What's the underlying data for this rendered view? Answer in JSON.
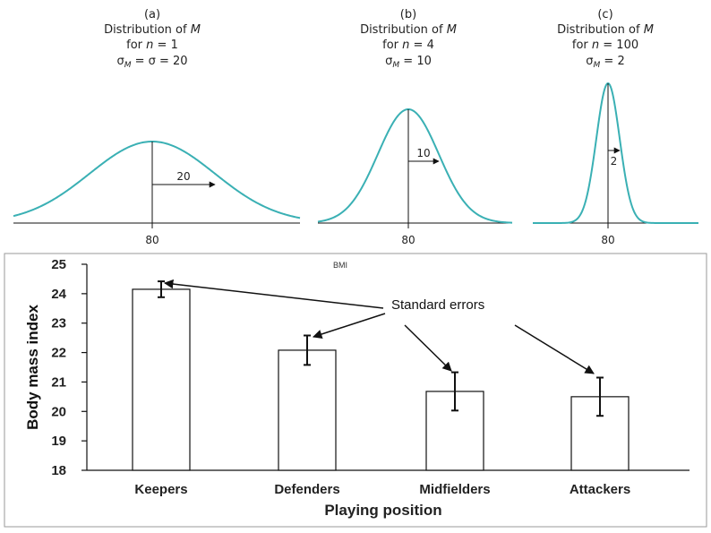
{
  "chart_data": [
    {
      "type": "line",
      "panels": [
        {
          "caption_letter": "(a)",
          "caption_title_prefix": "Distribution of ",
          "caption_title_var": "M",
          "caption_n_prefix": "for ",
          "caption_n_var": "n",
          "caption_n_suffix": " = 1",
          "caption_sigma_text": " = σ = 20",
          "mean_label": "80",
          "sd_label": "20",
          "sd": 20
        },
        {
          "caption_letter": "(b)",
          "caption_title_prefix": "Distribution of ",
          "caption_title_var": "M",
          "caption_n_prefix": "for ",
          "caption_n_var": "n",
          "caption_n_suffix": " = 4",
          "caption_sigma_text": " = 10",
          "mean_label": "80",
          "sd_label": "10",
          "sd": 10
        },
        {
          "caption_letter": "(c)",
          "caption_title_prefix": "Distribution of ",
          "caption_title_var": "M",
          "caption_n_prefix": "for ",
          "caption_n_var": "n",
          "caption_n_suffix": " = 100",
          "caption_sigma_text": " = 2",
          "mean_label": "80",
          "sd_label": "2",
          "sd": 2
        }
      ],
      "curve_color": "#3ab0b4"
    },
    {
      "type": "bar",
      "title": "BMI",
      "categories": [
        "Keepers",
        "Defenders",
        "Midfielders",
        "Attackers"
      ],
      "values": [
        24.15,
        22.08,
        20.68,
        20.5
      ],
      "errors": [
        0.27,
        0.5,
        0.65,
        0.65
      ],
      "xlabel": "Playing position",
      "ylabel": "Body mass index",
      "ylim": [
        18,
        25
      ],
      "yticks": [
        18,
        19,
        20,
        21,
        22,
        23,
        24,
        25
      ],
      "annotation": "Standard errors",
      "bar_fill": "#ffffff",
      "bar_stroke": "#111111"
    }
  ]
}
